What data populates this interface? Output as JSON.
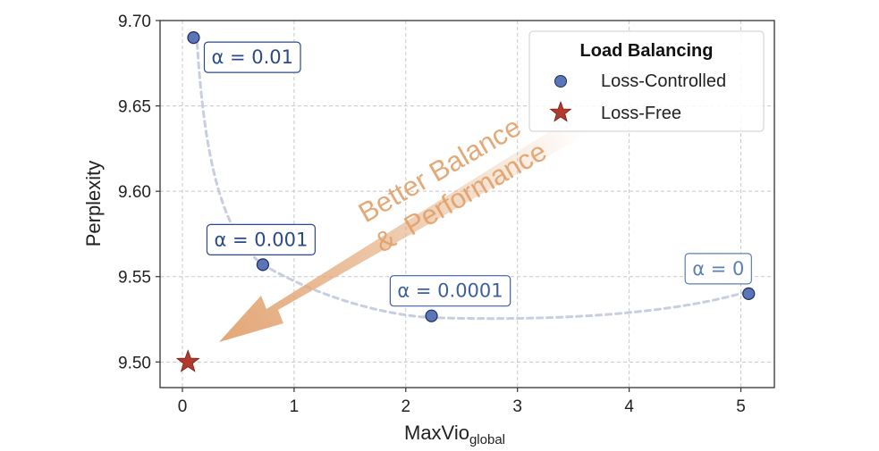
{
  "chart_data": {
    "type": "scatter",
    "xlabel": "MaxVio",
    "xlabel_subscript": "global",
    "ylabel": "Perplexity",
    "xlim": [
      -0.2,
      5.3
    ],
    "ylim": [
      9.485,
      9.7
    ],
    "xticks": [
      0,
      1,
      2,
      3,
      4,
      5
    ],
    "xtick_labels": [
      "0",
      "1",
      "2",
      "3",
      "4",
      "5"
    ],
    "yticks": [
      9.5,
      9.55,
      9.6,
      9.65,
      9.7
    ],
    "ytick_labels": [
      "9.50",
      "9.55",
      "9.60",
      "9.65",
      "9.70"
    ],
    "grid": true,
    "legend": {
      "title": "Load Balancing",
      "position": "top-right",
      "entries": [
        {
          "label": "Loss-Controlled",
          "marker": "circle",
          "color": "#5b76b8"
        },
        {
          "label": "Loss-Free",
          "marker": "star",
          "color": "#b03a2e"
        }
      ]
    },
    "series": [
      {
        "name": "Loss-Controlled",
        "marker": "circle",
        "points": [
          {
            "x": 0.1,
            "y": 9.69,
            "label": "α = 0.01",
            "label_color": "#2b4a8a"
          },
          {
            "x": 0.72,
            "y": 9.557,
            "label": "α = 0.001",
            "label_color": "#2b4a8a"
          },
          {
            "x": 2.23,
            "y": 9.527,
            "label": "α = 0.0001",
            "label_color": "#3e5f9e"
          },
          {
            "x": 5.07,
            "y": 9.54,
            "label": "α = 0",
            "label_color": "#5b7fb5"
          }
        ]
      },
      {
        "name": "Loss-Free",
        "marker": "star",
        "points": [
          {
            "x": 0.05,
            "y": 9.5
          }
        ]
      }
    ],
    "annotations": {
      "arrow_line1": "Better Balance",
      "arrow_line2": "&  Performance"
    }
  },
  "colors": {
    "controlled_fill": "#5b76b8",
    "controlled_stroke": "#1f2d5a",
    "free_fill": "#b03a2e",
    "curve": "#c8cee0",
    "arrow": "#e3a878",
    "arrow_text": "#e0a068",
    "grid": "#c8c8c8"
  }
}
